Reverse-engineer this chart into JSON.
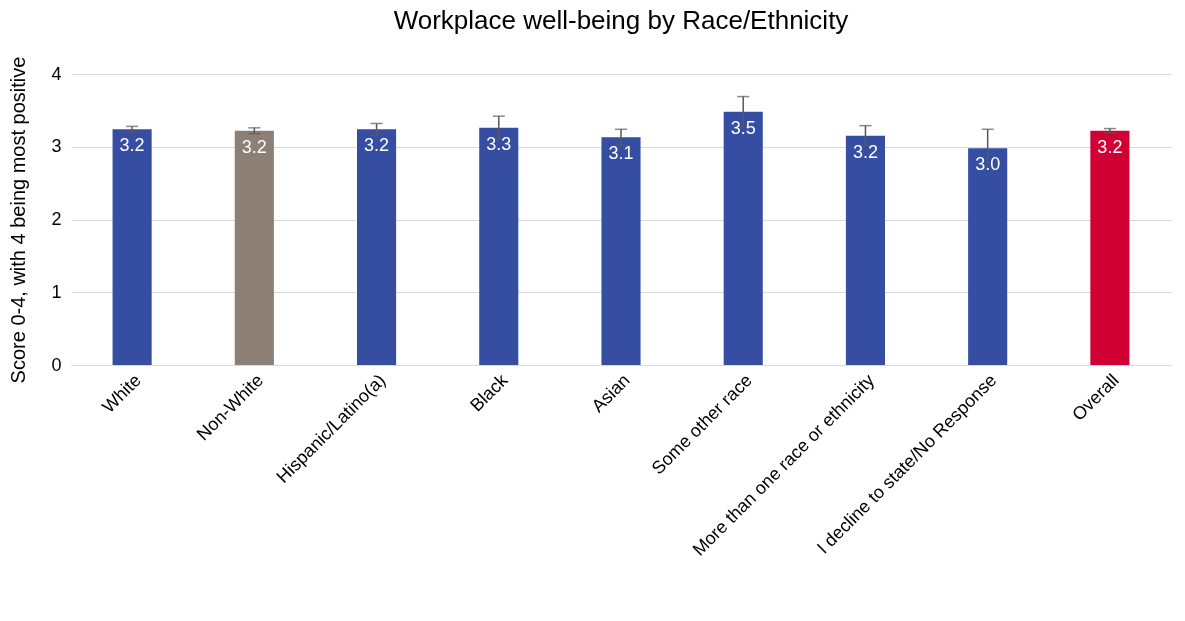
{
  "chart_data": {
    "type": "bar",
    "title": "Workplace well-being by Race/Ethnicity",
    "ylabel": "Score 0-4, with 4 being most positive",
    "categories": [
      "White",
      "Non-White",
      "Hispanic/Latino(a)",
      "Black",
      "Asian",
      "Some other race",
      "More than one race or ethnicity",
      "I decline to state/No Response",
      "Overall"
    ],
    "values": [
      3.24,
      3.22,
      3.24,
      3.26,
      3.13,
      3.48,
      3.15,
      2.98,
      3.22
    ],
    "value_labels": [
      "3.2",
      "3.2",
      "3.2",
      "3.3",
      "3.1",
      "3.5",
      "3.2",
      "3.0",
      "3.2"
    ],
    "errors": [
      0.04,
      0.04,
      0.08,
      0.16,
      0.11,
      0.21,
      0.14,
      0.26,
      0.03
    ],
    "colors": [
      "#354ea2",
      "#8b7f76",
      "#354ea2",
      "#354ea2",
      "#354ea2",
      "#354ea2",
      "#354ea2",
      "#354ea2",
      "#d10034"
    ],
    "ylim": [
      0,
      4
    ],
    "yticks": [
      0,
      1,
      2,
      3,
      4
    ],
    "grid": "y",
    "legend": false
  }
}
